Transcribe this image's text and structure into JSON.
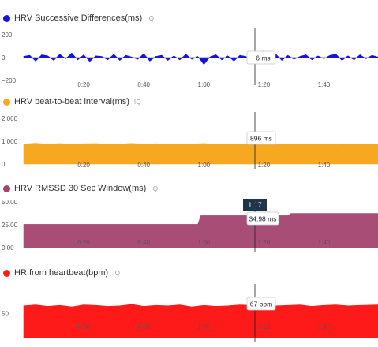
{
  "chart_data": [
    {
      "type": "area",
      "title": "HRV Successive Differences(ms)",
      "badge": "IQ",
      "color": "#1414e0",
      "unit": "ms",
      "ylim": [
        -200,
        200
      ],
      "yticks": [
        {
          "v": 200,
          "label": "200"
        },
        {
          "v": 0,
          "label": "0"
        },
        {
          "v": -200,
          "label": "−200"
        }
      ],
      "xticks": [
        "0:20",
        "0:40",
        "1:00",
        "1:20",
        "1:40"
      ],
      "x_seconds": [
        0,
        2,
        4,
        6,
        8,
        10,
        12,
        14,
        16,
        18,
        20,
        22,
        24,
        26,
        28,
        30,
        32,
        34,
        36,
        38,
        40,
        42,
        44,
        46,
        48,
        50,
        52,
        54,
        56,
        58,
        60,
        62,
        64,
        66,
        68,
        70,
        72,
        74,
        76,
        78,
        80,
        82,
        84,
        86,
        88,
        90,
        92,
        94,
        96,
        98,
        100,
        102,
        104,
        106,
        108,
        110,
        112,
        114,
        116,
        118
      ],
      "values": [
        10,
        20,
        -30,
        25,
        15,
        -25,
        30,
        -10,
        40,
        -20,
        25,
        -35,
        15,
        10,
        -20,
        30,
        -25,
        20,
        5,
        -15,
        35,
        -30,
        10,
        20,
        -25,
        15,
        -20,
        30,
        -15,
        10,
        -60,
        5,
        25,
        -20,
        15,
        -30,
        20,
        10,
        -25,
        25,
        60,
        -50,
        30,
        -25,
        20,
        -15,
        10,
        25,
        -20,
        15,
        -10,
        20,
        30,
        -25,
        15,
        -20,
        25,
        -10,
        20,
        5
      ],
      "cursor": {
        "x": 77,
        "tooltip": "−6 ms"
      }
    },
    {
      "type": "area",
      "title": "HRV beat-to-beat interval(ms)",
      "badge": "IQ",
      "color": "#f6a821",
      "unit": "ms",
      "ylim": [
        0,
        2000
      ],
      "yticks": [
        {
          "v": 2000,
          "label": "2,000"
        },
        {
          "v": 1000,
          "label": "1,000"
        },
        {
          "v": 0,
          "label": "0"
        }
      ],
      "xticks": [
        "0:20",
        "0:40",
        "1:00",
        "1:20",
        "1:40"
      ],
      "x_seconds": [
        0,
        4,
        8,
        12,
        16,
        20,
        24,
        28,
        32,
        36,
        40,
        44,
        48,
        52,
        56,
        60,
        64,
        68,
        72,
        76,
        80,
        84,
        88,
        92,
        96,
        100,
        104,
        108,
        112,
        118
      ],
      "values": [
        880,
        910,
        870,
        900,
        860,
        890,
        900,
        870,
        880,
        905,
        870,
        890,
        880,
        860,
        880,
        900,
        870,
        880,
        860,
        896,
        880,
        850,
        870,
        860,
        880,
        870,
        850,
        860,
        880,
        870
      ],
      "cursor": {
        "x": 77,
        "tooltip": "896 ms"
      }
    },
    {
      "type": "area",
      "title": "HRV RMSSD 30 Sec Window(ms)",
      "badge": "IQ",
      "color": "#a4446f",
      "unit": "ms",
      "ylim": [
        0,
        50
      ],
      "yticks": [
        {
          "v": 50,
          "label": "50.00"
        },
        {
          "v": 25,
          "label": "25.00"
        },
        {
          "v": 0,
          "label": "0.00"
        }
      ],
      "xticks": [
        "0:20",
        "0:40",
        "1:00",
        "1:20",
        "1:40"
      ],
      "x_seconds": [
        0,
        58,
        59,
        88,
        89,
        118
      ],
      "values": [
        25.5,
        25.5,
        34.98,
        34.98,
        37.5,
        37.5
      ],
      "cursor": {
        "x": 77,
        "label": "1:17",
        "tooltip": "34.98 ms"
      }
    },
    {
      "type": "area",
      "title": "HR from heartbeat(bpm)",
      "badge": "IQ",
      "color": "#ff1a1a",
      "unit": "bpm",
      "ylim": [
        0,
        105
      ],
      "yticks": [
        {
          "v": 50,
          "label": "50"
        }
      ],
      "xticks": [
        "0:20",
        "0:40",
        "1:00",
        "1:20",
        "1:40"
      ],
      "x_seconds": [
        0,
        4,
        8,
        12,
        16,
        20,
        24,
        28,
        32,
        36,
        40,
        44,
        48,
        52,
        56,
        60,
        64,
        68,
        72,
        76,
        80,
        84,
        88,
        92,
        96,
        100,
        104,
        108,
        112,
        118
      ],
      "values": [
        66,
        68,
        65,
        67,
        64,
        68,
        67,
        65,
        66,
        69,
        65,
        67,
        66,
        68,
        64,
        67,
        65,
        66,
        68,
        67,
        69,
        66,
        67,
        68,
        65,
        67,
        68,
        66,
        67,
        68
      ],
      "cursor": {
        "x": 77,
        "tooltip": "67 bpm"
      }
    }
  ]
}
